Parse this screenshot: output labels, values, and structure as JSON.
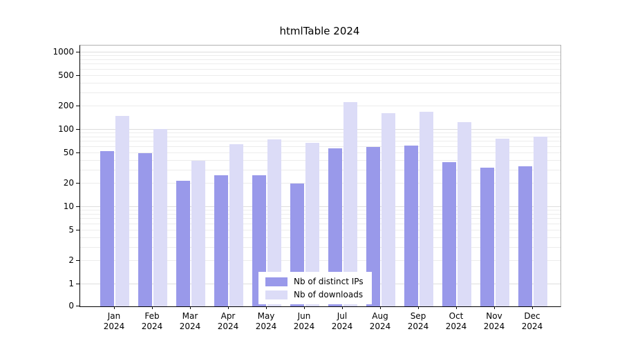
{
  "chart_data": {
    "type": "bar",
    "title": "htmlTable 2024",
    "year_label": "2024",
    "categories": [
      "Jan",
      "Feb",
      "Mar",
      "Apr",
      "May",
      "Jun",
      "Jul",
      "Aug",
      "Sep",
      "Oct",
      "Nov",
      "Dec"
    ],
    "series": [
      {
        "name": "Nb of distinct IPs",
        "color": "#9999ea",
        "values": [
          53,
          50,
          22,
          26,
          26,
          20,
          57,
          60,
          63,
          38,
          32,
          34
        ]
      },
      {
        "name": "Nb of downloads",
        "color": "#dcdcf7",
        "values": [
          150,
          103,
          40,
          65,
          75,
          68,
          230,
          165,
          172,
          125,
          77,
          82
        ]
      }
    ],
    "yticks": [
      0,
      1,
      2,
      5,
      10,
      20,
      50,
      100,
      200,
      500,
      1000
    ],
    "scale": "log",
    "ylim": [
      0,
      1000
    ],
    "grid": "horizontal",
    "legend_position": "bottom-center"
  }
}
